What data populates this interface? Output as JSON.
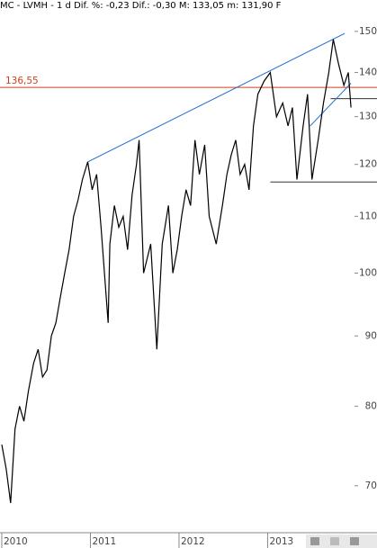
{
  "chart_data": {
    "type": "line",
    "title": "MC - LVMH -  1 d Dif. %: -0,23 Dif.: -0,30 M: 133,05 m: 131,90 F",
    "log_scale": true,
    "color": "#000000",
    "x": [
      2010.0,
      2010.05,
      2010.1,
      2010.15,
      2010.2,
      2010.25,
      2010.3,
      2010.36,
      2010.41,
      2010.46,
      2010.51,
      2010.56,
      2010.61,
      2010.66,
      2010.71,
      2010.76,
      2010.81,
      2010.86,
      2010.91,
      2010.97,
      2011.02,
      2011.07,
      2011.12,
      2011.2,
      2011.22,
      2011.27,
      2011.32,
      2011.37,
      2011.42,
      2011.47,
      2011.52,
      2011.55,
      2011.6,
      2011.68,
      2011.75,
      2011.81,
      2011.88,
      2011.93,
      2011.98,
      2012.03,
      2012.08,
      2012.13,
      2012.18,
      2012.23,
      2012.29,
      2012.34,
      2012.42,
      2012.49,
      2012.54,
      2012.59,
      2012.64,
      2012.69,
      2012.74,
      2012.79,
      2012.84,
      2012.89,
      2012.96,
      2013.03,
      2013.1,
      2013.17,
      2013.23,
      2013.28,
      2013.33,
      2013.4,
      2013.45,
      2013.5,
      2013.57,
      2013.63,
      2013.69,
      2013.74,
      2013.8,
      2013.86,
      2013.91,
      2013.94
    ],
    "values": [
      75,
      72,
      68,
      77,
      80,
      78,
      82,
      86,
      88,
      84,
      85,
      90,
      92,
      96,
      100,
      104,
      110,
      113,
      117,
      120.5,
      115,
      118,
      108,
      92,
      105,
      112,
      108,
      110,
      104,
      114,
      120,
      125,
      100,
      105,
      88,
      105,
      112,
      100,
      104,
      110,
      115,
      112,
      125,
      118,
      124,
      110,
      105,
      112,
      118,
      122,
      125,
      118,
      120,
      115,
      128,
      135,
      138,
      140,
      130,
      133,
      128,
      132,
      117,
      128,
      135,
      117,
      125,
      133,
      140,
      148,
      142,
      137,
      140,
      132
    ],
    "xlim": [
      2009.98,
      2013.98
    ],
    "xticks": [
      2010,
      2011,
      2012,
      2013
    ],
    "ylim": [
      64.7,
      158.1
    ],
    "yticks": [
      70,
      80,
      90,
      100,
      110,
      120,
      130,
      140,
      150
    ],
    "hlines": [
      {
        "value": 136.55,
        "label": "136,55",
        "color": "#d0401a"
      },
      {
        "value": 116.5,
        "color": "#333333",
        "x1": 2013.03
      },
      {
        "value": 134.0,
        "color": "#333333",
        "x1": 2013.71
      }
    ],
    "trendlines": [
      {
        "x1": 2010.97,
        "y1": 120.5,
        "x2": 2013.87,
        "y2": 149.5,
        "color": "#1f6fd0"
      },
      {
        "x1": 2013.48,
        "y1": 128.0,
        "x2": 2013.94,
        "y2": 137.5,
        "color": "#1f6fd0"
      }
    ]
  }
}
